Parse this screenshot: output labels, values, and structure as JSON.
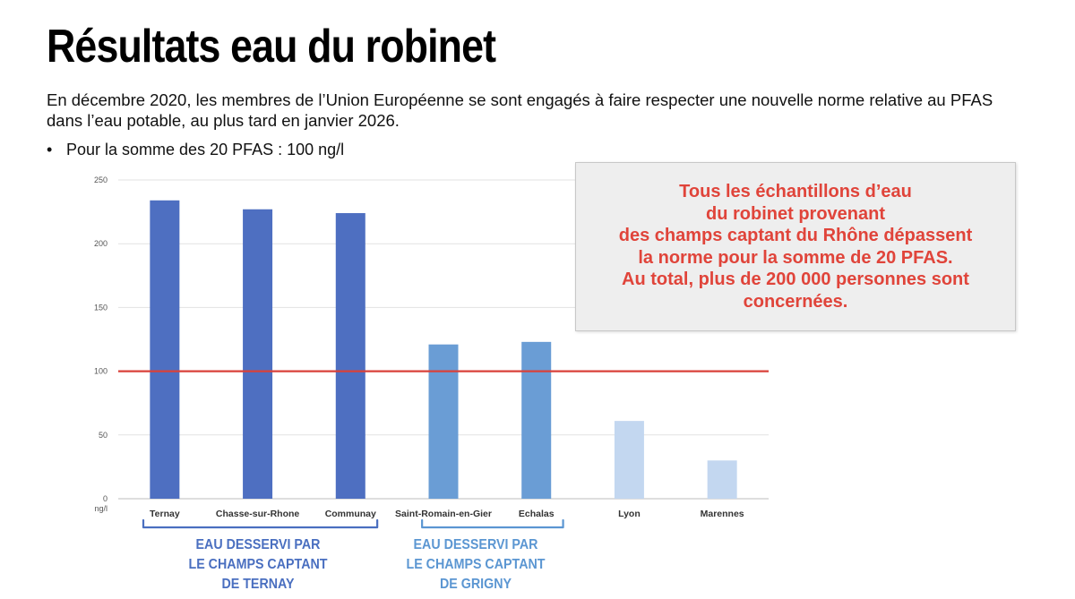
{
  "title": "Résultats eau du robinet",
  "intro": "En décembre 2020, les membres de l’Union Européenne se sont engagés à faire respecter une nouvelle norme relative au PFAS dans l’eau potable, au plus tard en janvier 2026.",
  "bullet": "Pour la somme des 20 PFAS : 100 ng/l",
  "callout": {
    "lines": [
      "Tous les échantillons d’eau",
      "du robinet provenant",
      "des champs captant du Rhône dépassent",
      "la norme pour la somme de 20 PFAS.",
      "Au total, plus de 200 000 personnes sont",
      "concernées."
    ],
    "color": "#e0443a"
  },
  "groups": [
    {
      "lines": [
        "EAU DESSERVI PAR",
        "LE CHAMPS CAPTANT",
        "DE TERNAY"
      ],
      "color": "#4a6fc0"
    },
    {
      "lines": [
        "EAU DESSERVI PAR",
        "LE CHAMPS CAPTANT",
        "DE GRIGNY"
      ],
      "color": "#5b96d2"
    }
  ],
  "chart_data": {
    "type": "bar",
    "categories": [
      "Ternay",
      "Chasse-sur-Rhone",
      "Communay",
      "Saint-Romain-en-Gier",
      "Echalas",
      "Lyon",
      "Marennes"
    ],
    "values": [
      234,
      227,
      224,
      121,
      123,
      61,
      30
    ],
    "colors": [
      "#4e6fc1",
      "#4e6fc1",
      "#4e6fc1",
      "#6a9dd5",
      "#6a9dd5",
      "#c3d7f0",
      "#c3d7f0"
    ],
    "ylim": [
      0,
      250
    ],
    "yticks": [
      0,
      50,
      100,
      150,
      200,
      250
    ],
    "yunit": "ng/l",
    "threshold": {
      "value": 100,
      "color": "#d9413a"
    },
    "grid": true
  }
}
